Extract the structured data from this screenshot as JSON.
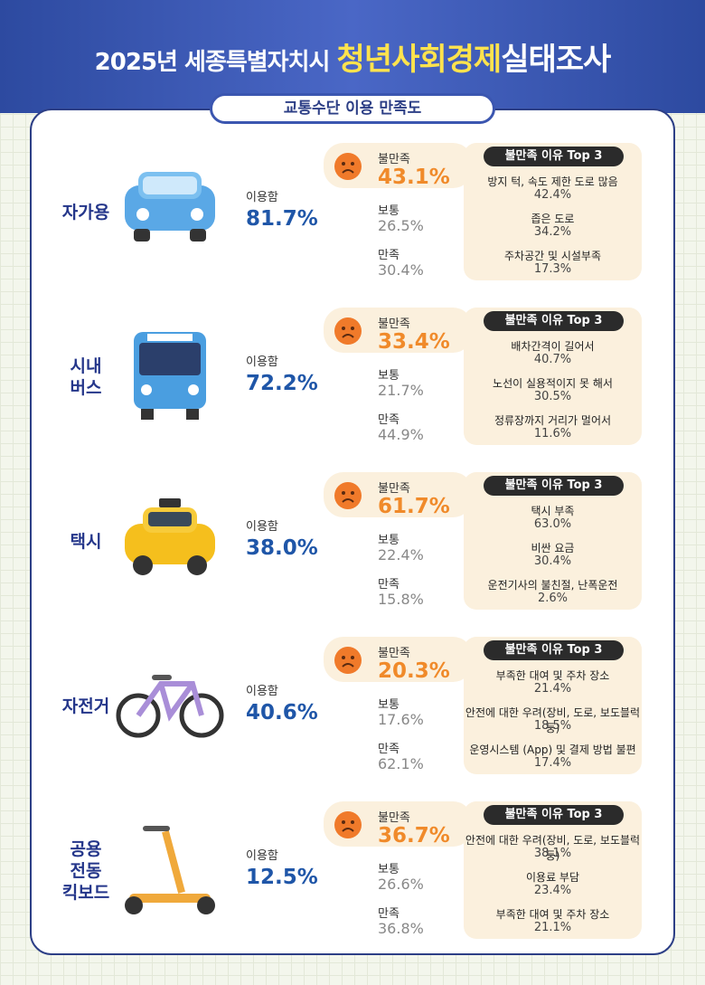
{
  "header": {
    "title_prefix": "2025년 세종특별자치시",
    "title_highlight": "청년사회경제",
    "title_suffix": "실태조사",
    "subtitle": "교통수단 이용 만족도"
  },
  "items": [
    {
      "name_lines": [
        "자가용"
      ],
      "use_label": "이용함",
      "use_value": "81.7%",
      "dissatisfied_label": "불만족",
      "dissatisfied": "43.1%",
      "neutral_label": "보통",
      "neutral": "26.5%",
      "satisfied_label": "만족",
      "satisfied": "30.4%",
      "reasons_title": "불만족 이유 Top 3",
      "reasons": [
        {
          "text": "방지 턱, 속도 제한 도로 많음",
          "value": "42.4%"
        },
        {
          "text": "좁은 도로",
          "value": "34.2%"
        },
        {
          "text": "주차공간 및 시설부족",
          "value": "17.3%"
        }
      ]
    },
    {
      "name_lines": [
        "시내",
        "버스"
      ],
      "use_label": "이용함",
      "use_value": "72.2%",
      "dissatisfied_label": "불만족",
      "dissatisfied": "33.4%",
      "neutral_label": "보통",
      "neutral": "21.7%",
      "satisfied_label": "만족",
      "satisfied": "44.9%",
      "reasons_title": "불만족 이유 Top 3",
      "reasons": [
        {
          "text": "배차간격이 길어서",
          "value": "40.7%"
        },
        {
          "text": "노선이 실용적이지 못 해서",
          "value": "30.5%"
        },
        {
          "text": "정류장까지 거리가 멀어서",
          "value": "11.6%"
        }
      ]
    },
    {
      "name_lines": [
        "택시"
      ],
      "use_label": "이용함",
      "use_value": "38.0%",
      "dissatisfied_label": "불만족",
      "dissatisfied": "61.7%",
      "neutral_label": "보통",
      "neutral": "22.4%",
      "satisfied_label": "만족",
      "satisfied": "15.8%",
      "reasons_title": "불만족 이유 Top 3",
      "reasons": [
        {
          "text": "택시 부족",
          "value": "63.0%"
        },
        {
          "text": "비싼 요금",
          "value": "30.4%"
        },
        {
          "text": "운전기사의 불친절, 난폭운전",
          "value": "2.6%"
        }
      ]
    },
    {
      "name_lines": [
        "자전거"
      ],
      "use_label": "이용함",
      "use_value": "40.6%",
      "dissatisfied_label": "불만족",
      "dissatisfied": "20.3%",
      "neutral_label": "보통",
      "neutral": "17.6%",
      "satisfied_label": "만족",
      "satisfied": "62.1%",
      "reasons_title": "불만족 이유 Top 3",
      "reasons": [
        {
          "text": "부족한 대여 및 주차 장소",
          "value": "21.4%"
        },
        {
          "text": "안전에 대한 우려(장비, 도로, 보도블럭등)",
          "value": "18.5%"
        },
        {
          "text": "운영시스템 (App) 및 결제 방법 불편",
          "value": "17.4%"
        }
      ]
    },
    {
      "name_lines": [
        "공용",
        "전동",
        "킥보드"
      ],
      "use_label": "이용함",
      "use_value": "12.5%",
      "dissatisfied_label": "불만족",
      "dissatisfied": "36.7%",
      "neutral_label": "보통",
      "neutral": "26.6%",
      "satisfied_label": "만족",
      "satisfied": "36.8%",
      "reasons_title": "불만족 이유 Top 3",
      "reasons": [
        {
          "text": "안전에 대한 우려(장비, 도로, 보도블럭등)",
          "value": "38.1%"
        },
        {
          "text": "이용료 부담",
          "value": "23.4%"
        },
        {
          "text": "부족한 대여 및 주차 장소",
          "value": "21.1%"
        }
      ]
    }
  ]
}
